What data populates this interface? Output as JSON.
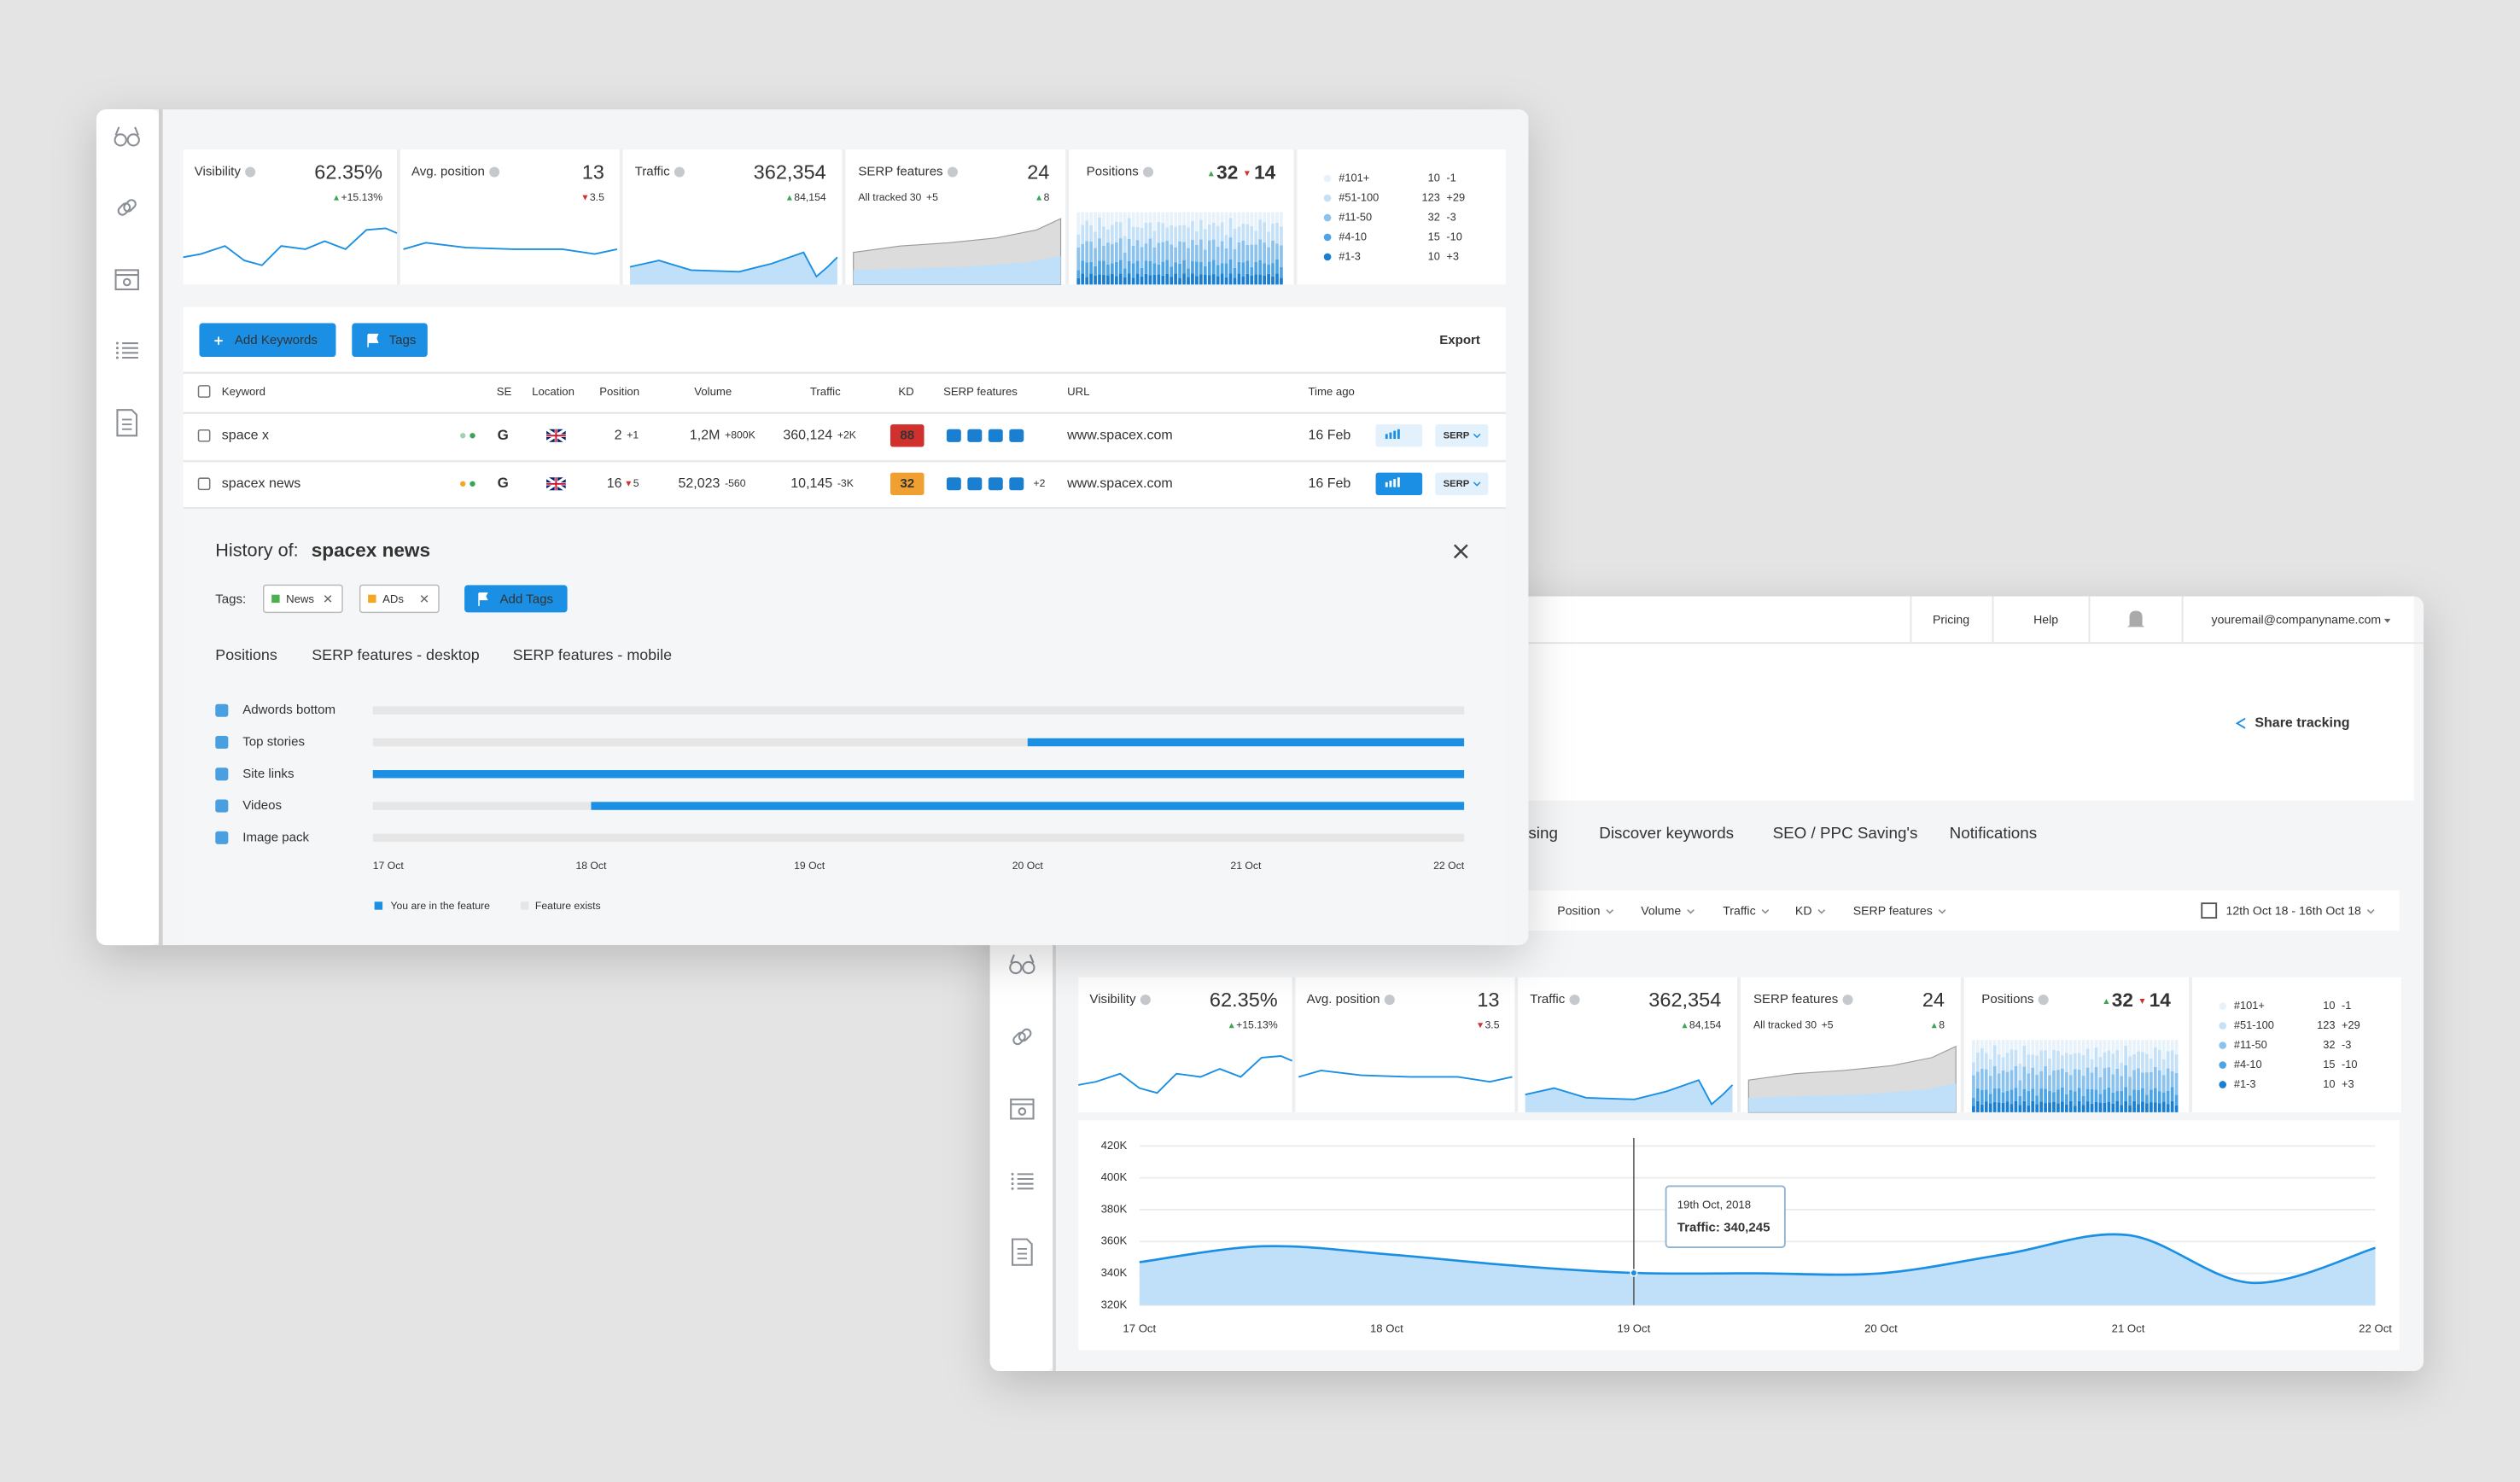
{
  "back_window": {
    "nav": [
      "Pricing",
      "Help",
      "youremail@companyname.com"
    ],
    "share": "Share tracking",
    "tabs": [
      "sing",
      "Discover keywords",
      "SEO / PPC Saving's",
      "Notifications"
    ],
    "filters": [
      "Position",
      "Volume",
      "Traffic",
      "KD",
      "SERP features"
    ],
    "date_range": "12th Oct 18 - 16th Oct 18",
    "traffic_chart": {
      "type": "area",
      "categories": [
        "17 Oct",
        null,
        "18 Oct",
        null,
        "19 Oct",
        null,
        "20 Oct",
        null,
        "21 Oct",
        null,
        "22 Oct"
      ],
      "values": [
        347000,
        357000,
        352000,
        345000,
        340245,
        340000,
        340000,
        352000,
        364000,
        334000,
        356000
      ],
      "color": "#1a8fe3",
      "ylim": [
        320000,
        420000
      ],
      "yticks": [
        {
          "value": 320000,
          "label": "320K"
        },
        {
          "value": 340000,
          "label": "340K"
        },
        {
          "value": 360000,
          "label": "360K"
        },
        {
          "value": 380000,
          "label": "380K"
        },
        {
          "value": 400000,
          "label": "400K"
        },
        {
          "value": 420000,
          "label": "420K"
        }
      ],
      "grid": true,
      "tooltip": {
        "index": 4,
        "title": "19th Oct, 2018",
        "text": "Traffic: 340,245"
      }
    }
  },
  "metrics": [
    {
      "label": "Visibility",
      "value": "62.35%",
      "change": "+15.13%",
      "trend": "up"
    },
    {
      "label": "Avg. position",
      "value": 13,
      "change": 3.5,
      "trend": "down"
    },
    {
      "label": "Traffic",
      "value": "362,354",
      "change": "84,154",
      "trend": "up"
    },
    {
      "label": "SERP features",
      "value": 24,
      "sub": "All tracked 30",
      "sub_change": "+5",
      "change": 8,
      "trend": "up"
    }
  ],
  "positions": {
    "label": "Positions",
    "up": 32,
    "down": 14,
    "legend": [
      {
        "name": "#101+",
        "value": 10,
        "change": "-1",
        "color": "#e8f2fb"
      },
      {
        "name": "#51-100",
        "value": 123,
        "change": "+29",
        "color": "#c5e1f7"
      },
      {
        "name": "#11-50",
        "value": 32,
        "change": "-3",
        "color": "#8cc3ee"
      },
      {
        "name": "#4-10",
        "value": 15,
        "change": "-10",
        "color": "#4ea5e6"
      },
      {
        "name": "#1-3",
        "value": 10,
        "change": "+3",
        "color": "#1a7fd1"
      }
    ]
  },
  "front_window": {
    "buttons": {
      "add_keywords": "Add Keywords",
      "tags": "Tags",
      "export": "Export"
    },
    "table": {
      "headers": [
        "Keyword",
        "SE",
        "Location",
        "Position",
        "Volume",
        "Traffic",
        "KD",
        "SERP features",
        "URL",
        "Time ago"
      ],
      "rows": [
        {
          "keyword": "space x",
          "se": "G",
          "position": 2,
          "position_change": "+1",
          "volume": "1,2M",
          "volume_change": "+800K",
          "traffic": "360,124",
          "traffic_change": "+2K",
          "kd": 88,
          "kd_color": "#d0312d",
          "url": "www.spacex.com",
          "time": "16 Feb",
          "action": "SERP"
        },
        {
          "keyword": "spacex news",
          "se": "G",
          "position": 16,
          "position_change": "5",
          "volume": "52,023",
          "volume_change": "-560",
          "traffic": "10,145",
          "traffic_change": "-3K",
          "kd": 32,
          "kd_color": "#f0a030",
          "serp_more": "+2",
          "url": "www.spacex.com",
          "time": "16 Feb",
          "action": "SERP"
        }
      ]
    },
    "history": {
      "title": "History of:",
      "keyword": "spacex news",
      "tags_label": "Tags:",
      "tags": [
        {
          "name": "News",
          "color": "#4caf50"
        },
        {
          "name": "ADs",
          "color": "#f5a623"
        }
      ],
      "add_tags": "Add Tags",
      "tabs": [
        "Positions",
        "SERP features - desktop",
        "SERP features - mobile"
      ],
      "active_tab": 1,
      "chart": {
        "categories": [
          "17 Oct",
          "18 Oct",
          "19 Oct",
          "20 Oct",
          "21 Oct",
          "22 Oct"
        ],
        "features": [
          {
            "name": "Adwords bottom",
            "from": null
          },
          {
            "name": "Top stories",
            "from": 3
          },
          {
            "name": "Site links",
            "from": 0
          },
          {
            "name": "Videos",
            "from": 1
          },
          {
            "name": "Image pack",
            "from": null
          }
        ],
        "color": "#1a8fe3",
        "legend": [
          "You are in the feature",
          "Feature exists"
        ]
      }
    }
  }
}
